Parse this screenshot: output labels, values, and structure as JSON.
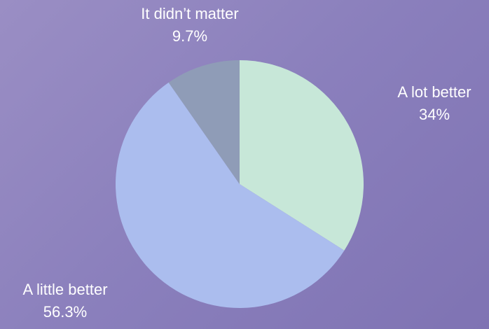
{
  "chart_data": {
    "type": "pie",
    "title": "",
    "slices": [
      {
        "label": "A lot better",
        "value": 34,
        "value_label": "34%",
        "color": "#c7e7d8"
      },
      {
        "label": "A little better",
        "value": 56.3,
        "value_label": "56.3%",
        "color": "#abbdee"
      },
      {
        "label": "It didn’t matter",
        "value": 9.7,
        "value_label": "9.7%",
        "color": "#8f9cb7"
      }
    ],
    "start_angle": "12 o'clock",
    "direction": "clockwise",
    "legend": "none",
    "background": [
      "#9a8ec4",
      "#7f73b3"
    ]
  }
}
